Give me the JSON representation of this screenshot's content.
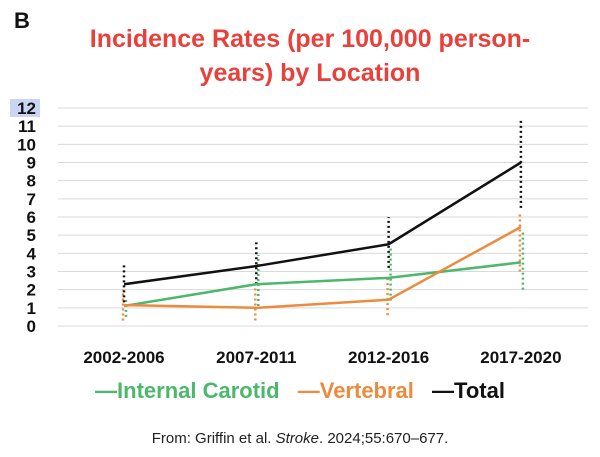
{
  "panel_letter": "B",
  "colors": {
    "internal_carotid": "#4cb86b",
    "vertebral": "#ec8a3e",
    "total": "#111111",
    "title": "#e8403a"
  },
  "chart_data": {
    "type": "line",
    "title": "Incidence Rates (per 100,000 person-years) by Location",
    "title_lines": [
      "Incidence Rates (per 100,000 person-",
      "years) by Location"
    ],
    "categories": [
      "2002-2006",
      "2007-2011",
      "2012-2016",
      "2017-2020"
    ],
    "ylim": [
      0,
      12
    ],
    "yticks": [
      0,
      1,
      2,
      3,
      4,
      5,
      6,
      7,
      8,
      9,
      10,
      11,
      12
    ],
    "grid": true,
    "legend_position": "bottom",
    "series": [
      {
        "key": "internal_carotid",
        "name": "Internal Carotid",
        "legend_label": "—Internal Carotid",
        "values": [
          1.1,
          2.3,
          2.65,
          3.5
        ],
        "ci_low": [
          0.5,
          1.1,
          1.4,
          2.0
        ],
        "ci_high": [
          1.6,
          3.9,
          4.3,
          5.2
        ]
      },
      {
        "key": "vertebral",
        "name": "Vertebral",
        "legend_label": "—Vertebral",
        "values": [
          1.15,
          1.0,
          1.45,
          5.45
        ],
        "ci_low": [
          0.3,
          0.3,
          0.6,
          3.0
        ],
        "ci_high": [
          2.0,
          2.3,
          2.7,
          6.3
        ]
      },
      {
        "key": "total",
        "name": "Total",
        "legend_label": "—Total",
        "values": [
          2.3,
          3.3,
          4.5,
          9.0
        ],
        "ci_low": [
          1.3,
          2.3,
          3.2,
          6.5
        ],
        "ci_high": [
          3.5,
          4.6,
          6.0,
          11.3
        ]
      }
    ]
  },
  "source": {
    "prefix": "From: Griffin et al. ",
    "journal": "Stroke",
    "suffix": ". 2024;55:670–677."
  }
}
